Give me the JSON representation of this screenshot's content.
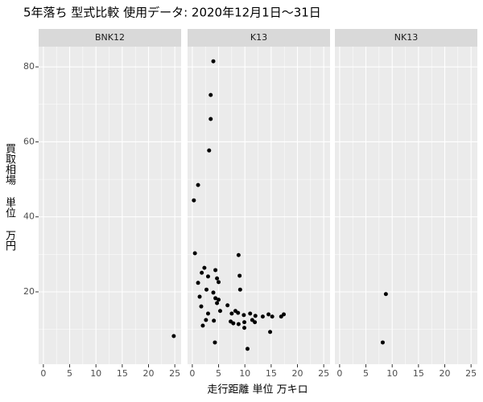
{
  "chart_data": {
    "type": "scatter",
    "title": "5年落ち 型式比較 使用データ: 2020年12月1日～31日",
    "x_label": "走行距離 単位 万キロ",
    "y_label": "買取相場 単位 万円",
    "color": "#000000",
    "grid": true,
    "xlim": [
      -0.9,
      26.2
    ],
    "ylim": [
      0.7,
      85.4
    ],
    "xticks": [
      0,
      5,
      10,
      15,
      20,
      25
    ],
    "yticks": [
      20,
      40,
      60,
      80
    ],
    "minor_xticks": [
      2.5,
      7.5,
      12.5,
      17.5,
      22.5
    ],
    "minor_yticks": [
      10,
      30,
      50,
      70
    ],
    "facets": [
      {
        "name": "BNK12",
        "x": [
          24.8
        ],
        "y": [
          8.2
        ]
      },
      {
        "name": "K13",
        "x": [
          4.0,
          3.5,
          3.5,
          3.2,
          1.1,
          0.3,
          0.5,
          2.3,
          1.1,
          1.8,
          3.0,
          4.4,
          4.7,
          5.0,
          8.8,
          9.0,
          9.1,
          2.7,
          4.0,
          1.4,
          4.4,
          5.0,
          4.7,
          1.7,
          6.7,
          5.3,
          3.0,
          7.5,
          8.2,
          8.7,
          9.8,
          11.0,
          12.0,
          13.4,
          14.5,
          15.2,
          16.9,
          17.4,
          2.6,
          4.1,
          7.3,
          7.8,
          8.8,
          9.9,
          11.4,
          11.9,
          2.0,
          9.9,
          14.8,
          4.3,
          10.5
        ],
        "y": [
          81.5,
          72.5,
          66.1,
          57.7,
          48.5,
          44.4,
          30.3,
          26.4,
          22.4,
          25.1,
          24.1,
          25.8,
          23.6,
          22.6,
          29.8,
          24.3,
          20.6,
          20.6,
          19.8,
          18.7,
          18.3,
          17.9,
          17.0,
          16.1,
          16.4,
          14.9,
          14.2,
          14.2,
          14.9,
          14.4,
          13.8,
          14.2,
          13.6,
          13.4,
          14.0,
          13.4,
          13.4,
          14.0,
          12.5,
          12.3,
          12.1,
          11.6,
          11.4,
          11.9,
          12.5,
          11.9,
          11.0,
          10.4,
          9.3,
          6.5,
          4.8
        ]
      },
      {
        "name": "NK13",
        "x": [
          8.2,
          8.8
        ],
        "y": [
          6.5,
          19.4
        ]
      }
    ]
  }
}
